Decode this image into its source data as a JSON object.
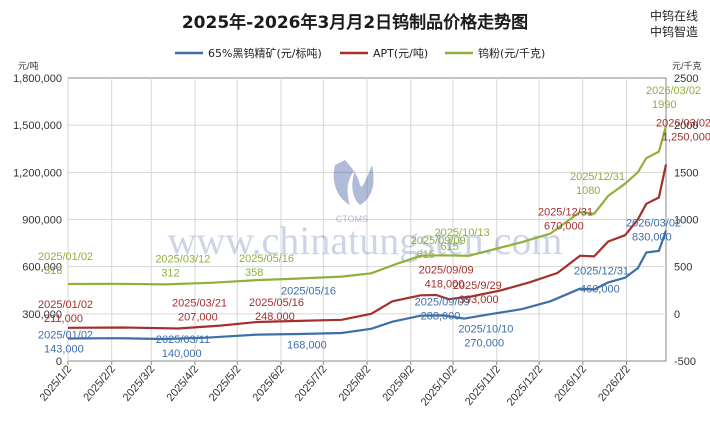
{
  "brand": [
    "中钨在线",
    "中钨智造"
  ],
  "watermark": "www.chinatungsten.com",
  "watermark_logo_text": "CTOMS",
  "chart_data": {
    "type": "line",
    "title": "2025年-2026年3月月2日钨制品价格走势图",
    "y_left_unit": "元/吨",
    "y_right_unit": "元/千克",
    "y_left_ticks": [
      "0",
      "300,000",
      "600,000",
      "900,000",
      "1,200,000",
      "1,500,000",
      "1,800,000"
    ],
    "y_right_ticks": [
      "-500",
      "0",
      "500",
      "1000",
      "1500",
      "2000",
      "2500"
    ],
    "ylim_left": [
      0,
      1800000
    ],
    "ylim_right": [
      -500,
      2500
    ],
    "x_ticks": [
      "2025/1/2",
      "2025/2/2",
      "2025/3/2",
      "2025/4/2",
      "2025/5/2",
      "2025/6/2",
      "2025/7/2",
      "2025/8/2",
      "2025/9/2",
      "2025/10/2",
      "2025/11/2",
      "2025/12/2",
      "2026/1/2",
      "2026/2/2"
    ],
    "xlim": [
      "2025-01-02",
      "2026-03-02"
    ],
    "legend_position": "top",
    "grid": true,
    "series": [
      {
        "name": "65%黑钨精矿(元/标吨)",
        "axis": "left",
        "color": "#3d6fa8",
        "points": [
          [
            "2025-01-02",
            143000
          ],
          [
            "2025-02-05",
            145000
          ],
          [
            "2025-03-11",
            140000
          ],
          [
            "2025-04-10",
            148000
          ],
          [
            "2025-05-16",
            168000
          ],
          [
            "2025-06-15",
            172000
          ],
          [
            "2025-07-15",
            178000
          ],
          [
            "2025-08-05",
            205000
          ],
          [
            "2025-08-20",
            250000
          ],
          [
            "2025-09-09",
            288000
          ],
          [
            "2025-09-25",
            290000
          ],
          [
            "2025-10-10",
            270000
          ],
          [
            "2025-10-30",
            300000
          ],
          [
            "2025-11-20",
            330000
          ],
          [
            "2025-12-10",
            380000
          ],
          [
            "2025-12-31",
            460000
          ],
          [
            "2026-01-10",
            455000
          ],
          [
            "2026-01-20",
            500000
          ],
          [
            "2026-02-01",
            530000
          ],
          [
            "2026-02-10",
            590000
          ],
          [
            "2026-02-16",
            690000
          ],
          [
            "2026-02-25",
            700000
          ],
          [
            "2026-03-02",
            830000
          ]
        ]
      },
      {
        "name": "APT(元/吨)",
        "axis": "left",
        "color": "#a3302e",
        "points": [
          [
            "2025-01-02",
            211000
          ],
          [
            "2025-02-10",
            213000
          ],
          [
            "2025-03-21",
            207000
          ],
          [
            "2025-04-20",
            225000
          ],
          [
            "2025-05-16",
            248000
          ],
          [
            "2025-06-15",
            255000
          ],
          [
            "2025-07-15",
            262000
          ],
          [
            "2025-08-05",
            300000
          ],
          [
            "2025-08-20",
            380000
          ],
          [
            "2025-09-09",
            418000
          ],
          [
            "2025-09-20",
            420000
          ],
          [
            "2025-09-29",
            393000
          ],
          [
            "2025-10-15",
            410000
          ],
          [
            "2025-11-05",
            450000
          ],
          [
            "2025-11-25",
            500000
          ],
          [
            "2025-12-15",
            560000
          ],
          [
            "2025-12-31",
            670000
          ],
          [
            "2026-01-10",
            665000
          ],
          [
            "2026-01-20",
            760000
          ],
          [
            "2026-02-01",
            800000
          ],
          [
            "2026-02-10",
            900000
          ],
          [
            "2026-02-16",
            1000000
          ],
          [
            "2026-02-25",
            1040000
          ],
          [
            "2026-03-02",
            1250000
          ]
        ]
      },
      {
        "name": "钨粉(元/千克)",
        "axis": "right",
        "color": "#8fb03c",
        "points": [
          [
            "2025-01-02",
            316
          ],
          [
            "2025-02-05",
            318
          ],
          [
            "2025-03-12",
            312
          ],
          [
            "2025-04-15",
            330
          ],
          [
            "2025-05-16",
            358
          ],
          [
            "2025-06-15",
            375
          ],
          [
            "2025-07-15",
            395
          ],
          [
            "2025-08-05",
            430
          ],
          [
            "2025-08-25",
            540
          ],
          [
            "2025-09-09",
            615
          ],
          [
            "2025-09-25",
            620
          ],
          [
            "2025-10-13",
            615
          ],
          [
            "2025-10-30",
            680
          ],
          [
            "2025-11-20",
            760
          ],
          [
            "2025-12-10",
            850
          ],
          [
            "2025-12-31",
            1080
          ],
          [
            "2026-01-10",
            1060
          ],
          [
            "2026-01-20",
            1250
          ],
          [
            "2026-02-01",
            1380
          ],
          [
            "2026-02-10",
            1500
          ],
          [
            "2026-02-16",
            1650
          ],
          [
            "2026-02-25",
            1720
          ],
          [
            "2026-03-02",
            1990
          ]
        ]
      }
    ],
    "annotations": [
      {
        "series": 0,
        "date": "2025/01/02",
        "value": "143,000"
      },
      {
        "series": 0,
        "date": "2025/03/11",
        "value": "140,000"
      },
      {
        "series": 0,
        "date": "2025/05/16",
        "value": "168,000"
      },
      {
        "series": 0,
        "date": "2025/09/09",
        "value": "288,000"
      },
      {
        "series": 0,
        "date": "2025/10/10",
        "value": "270,000"
      },
      {
        "series": 0,
        "date": "2025/12/31",
        "value": "460,000"
      },
      {
        "series": 0,
        "date": "2026/03/02",
        "value": "830,000"
      },
      {
        "series": 1,
        "date": "2025/01/02",
        "value": "211,000"
      },
      {
        "series": 1,
        "date": "2025/03/21",
        "value": "207,000"
      },
      {
        "series": 1,
        "date": "2025/05/16",
        "value": "248,000"
      },
      {
        "series": 1,
        "date": "2025/09/09",
        "value": "418,000"
      },
      {
        "series": 1,
        "date": "2025/9/29",
        "value": "393,000"
      },
      {
        "series": 1,
        "date": "2025/12/31",
        "value": "670,000"
      },
      {
        "series": 1,
        "date": "2026/03/02",
        "value": "1,250,000"
      },
      {
        "series": 2,
        "date": "2025/01/02",
        "value": "316"
      },
      {
        "series": 2,
        "date": "2025/03/12",
        "value": "312"
      },
      {
        "series": 2,
        "date": "2025/05/16",
        "value": "358"
      },
      {
        "series": 2,
        "date": "2025/09/09",
        "value": "615"
      },
      {
        "series": 2,
        "date": "2025/10/13",
        "value": "615"
      },
      {
        "series": 2,
        "date": "2025/12/31",
        "value": "1080"
      },
      {
        "series": 2,
        "date": "2026/03/02",
        "value": "1990"
      }
    ]
  }
}
